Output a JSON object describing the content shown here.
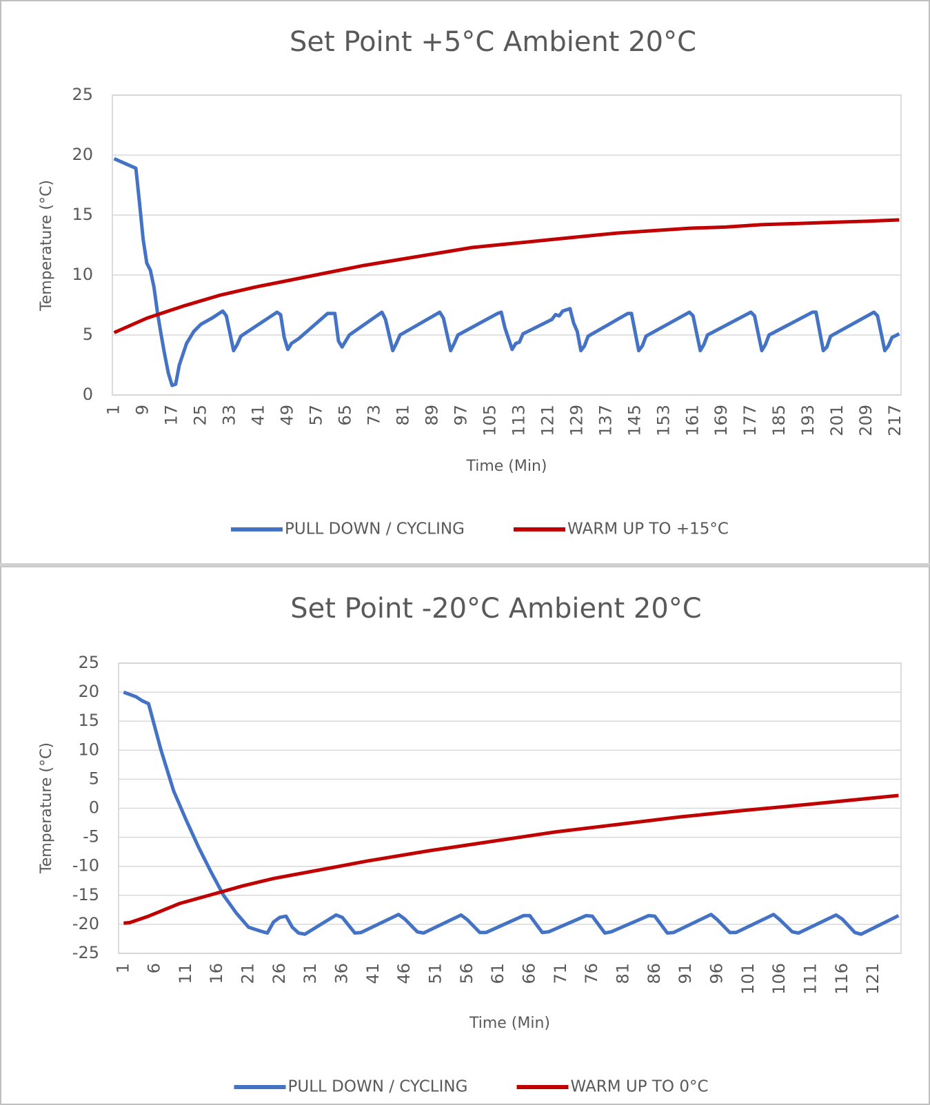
{
  "chart_data": [
    {
      "type": "line",
      "title": "Set Point +5°C Ambient 20°C",
      "xlabel": "Time (Min)",
      "ylabel": "Temperature (°C)",
      "xlim": [
        0.5,
        218.5
      ],
      "xticks": [
        1,
        9,
        17,
        25,
        33,
        41,
        49,
        57,
        65,
        73,
        81,
        89,
        97,
        105,
        113,
        121,
        129,
        137,
        145,
        153,
        161,
        169,
        177,
        185,
        193,
        201,
        209,
        217
      ],
      "ylim": [
        0,
        25
      ],
      "yticks": [
        0,
        5,
        10,
        15,
        20,
        25
      ],
      "grid": true,
      "legend": "bottom",
      "series": [
        {
          "name": "PULL DOWN / CYCLING",
          "color": "#4472c4",
          "x": [
            1,
            4,
            7,
            8,
            9,
            10,
            11,
            12,
            13,
            14,
            15,
            16,
            17,
            18,
            19,
            21,
            23,
            25,
            28,
            31,
            32,
            34,
            35,
            36,
            46,
            47,
            48,
            49,
            50,
            52,
            60,
            62,
            63,
            64,
            65,
            66,
            75,
            76,
            78,
            79,
            80,
            91,
            92,
            94,
            95,
            96,
            107,
            108,
            109,
            111,
            112,
            113,
            114,
            122,
            123,
            124,
            125,
            127,
            128,
            129,
            130,
            131,
            132,
            143,
            144,
            146,
            147,
            148,
            160,
            161,
            163,
            164,
            165,
            177,
            178,
            180,
            181,
            182,
            194,
            195,
            197,
            198,
            199,
            211,
            212,
            214,
            215,
            216,
            218
          ],
          "values": [
            19.7,
            19.3,
            18.9,
            16,
            13,
            11,
            10.4,
            9,
            6.8,
            5,
            3.3,
            1.8,
            0.8,
            0.9,
            2.5,
            4.3,
            5.3,
            5.9,
            6.4,
            7.0,
            6.6,
            3.7,
            4.2,
            4.9,
            6.9,
            6.7,
            4.8,
            3.8,
            4.3,
            4.7,
            6.8,
            6.8,
            4.5,
            4.0,
            4.5,
            5.0,
            6.9,
            6.3,
            3.7,
            4.3,
            5.0,
            6.9,
            6.4,
            3.7,
            4.3,
            5.0,
            6.8,
            6.9,
            5.6,
            3.8,
            4.3,
            4.4,
            5.1,
            6.3,
            6.7,
            6.6,
            7.0,
            7.2,
            6.0,
            5.3,
            3.7,
            4.1,
            4.9,
            6.8,
            6.8,
            3.7,
            4.1,
            4.9,
            6.9,
            6.6,
            3.7,
            4.2,
            5.0,
            6.9,
            6.6,
            3.7,
            4.2,
            5.0,
            6.9,
            6.9,
            3.7,
            4.0,
            4.9,
            6.9,
            6.6,
            3.7,
            4.1,
            4.8,
            5.1
          ]
        },
        {
          "name": "WARM UP TO +15°C",
          "color": "#c00000",
          "x": [
            1,
            10,
            20,
            30,
            40,
            50,
            60,
            70,
            80,
            90,
            100,
            110,
            120,
            130,
            140,
            150,
            160,
            170,
            180,
            190,
            200,
            210,
            218
          ],
          "values": [
            5.2,
            6.4,
            7.4,
            8.3,
            9.0,
            9.6,
            10.2,
            10.8,
            11.3,
            11.8,
            12.3,
            12.6,
            12.9,
            13.2,
            13.5,
            13.7,
            13.9,
            14.0,
            14.2,
            14.3,
            14.4,
            14.5,
            14.6
          ]
        }
      ]
    },
    {
      "type": "line",
      "title": "Set Point -20°C Ambient 20°C",
      "xlabel": "Time (Min)",
      "ylabel": "Temperature (°C)",
      "xlim": [
        0.2,
        125.4
      ],
      "xticks": [
        1,
        6,
        11,
        16,
        21,
        26,
        31,
        36,
        41,
        46,
        51,
        56,
        61,
        66,
        71,
        76,
        81,
        86,
        91,
        96,
        101,
        106,
        111,
        116,
        121
      ],
      "ylim": [
        -25,
        25
      ],
      "yticks": [
        -25,
        -20,
        -15,
        -10,
        -5,
        0,
        5,
        10,
        15,
        20,
        25
      ],
      "grid": true,
      "legend": "bottom",
      "series": [
        {
          "name": "PULL DOWN / CYCLING",
          "color": "#4472c4",
          "x": [
            1,
            3,
            4,
            5,
            7,
            9,
            11,
            13,
            15,
            17,
            19,
            21,
            23,
            24,
            25,
            26,
            27,
            28,
            29,
            30,
            35,
            36,
            38,
            39,
            45,
            46,
            48,
            49,
            55,
            56,
            58,
            59,
            65,
            66,
            68,
            69,
            75,
            76,
            78,
            79,
            85,
            86,
            88,
            89,
            95,
            96,
            98,
            99,
            105,
            106,
            108,
            109,
            115,
            116,
            118,
            119,
            125
          ],
          "values": [
            20,
            19.2,
            18.5,
            18,
            10,
            3,
            -2,
            -6.7,
            -11,
            -15,
            -18,
            -20.5,
            -21.2,
            -21.5,
            -19.6,
            -18.8,
            -18.6,
            -20.5,
            -21.5,
            -21.7,
            -18.4,
            -18.8,
            -21.5,
            -21.4,
            -18.3,
            -19.1,
            -21.3,
            -21.5,
            -18.4,
            -19.2,
            -21.4,
            -21.4,
            -18.5,
            -18.5,
            -21.4,
            -21.3,
            -18.5,
            -18.6,
            -21.5,
            -21.3,
            -18.5,
            -18.6,
            -21.5,
            -21.4,
            -18.3,
            -19.2,
            -21.4,
            -21.4,
            -18.3,
            -19.2,
            -21.3,
            -21.5,
            -18.4,
            -19.1,
            -21.4,
            -21.7,
            -18.5
          ]
        },
        {
          "name": "WARM UP TO 0°C",
          "color": "#c00000",
          "x": [
            1,
            2,
            5,
            10,
            15,
            20,
            25,
            30,
            40,
            50,
            60,
            70,
            80,
            90,
            100,
            110,
            125
          ],
          "values": [
            -19.8,
            -19.7,
            -18.6,
            -16.4,
            -14.9,
            -13.4,
            -12.1,
            -11.1,
            -9.1,
            -7.3,
            -5.7,
            -4.1,
            -2.8,
            -1.5,
            -0.4,
            0.6,
            2.2
          ]
        }
      ]
    }
  ]
}
